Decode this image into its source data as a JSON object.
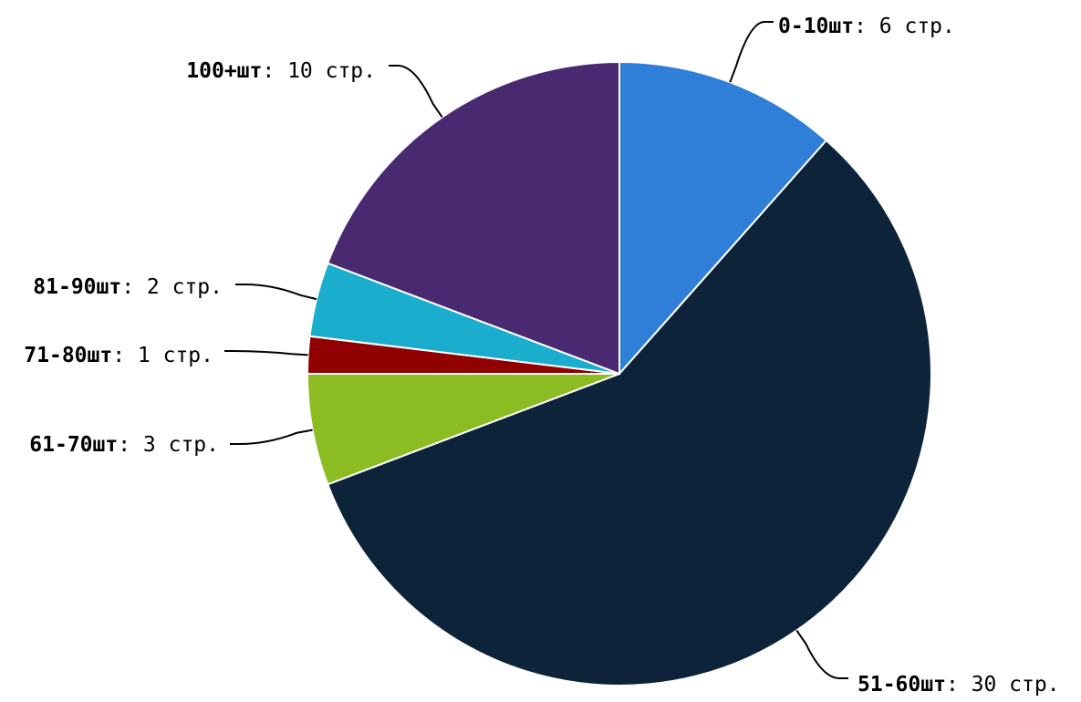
{
  "chart_data": {
    "type": "pie",
    "unit": "стр.",
    "slices": [
      {
        "label": "0-10шт",
        "value": 6,
        "color": "#2f7ed8"
      },
      {
        "label": "51-60шт",
        "value": 30,
        "color": "#0d233a"
      },
      {
        "label": "61-70шт",
        "value": 3,
        "color": "#8bbc21"
      },
      {
        "label": "71-80шт",
        "value": 1,
        "color": "#910000"
      },
      {
        "label": "81-90шт",
        "value": 2,
        "color": "#1aadce"
      },
      {
        "label": "100+шт",
        "value": 10,
        "color": "#492970"
      }
    ]
  }
}
